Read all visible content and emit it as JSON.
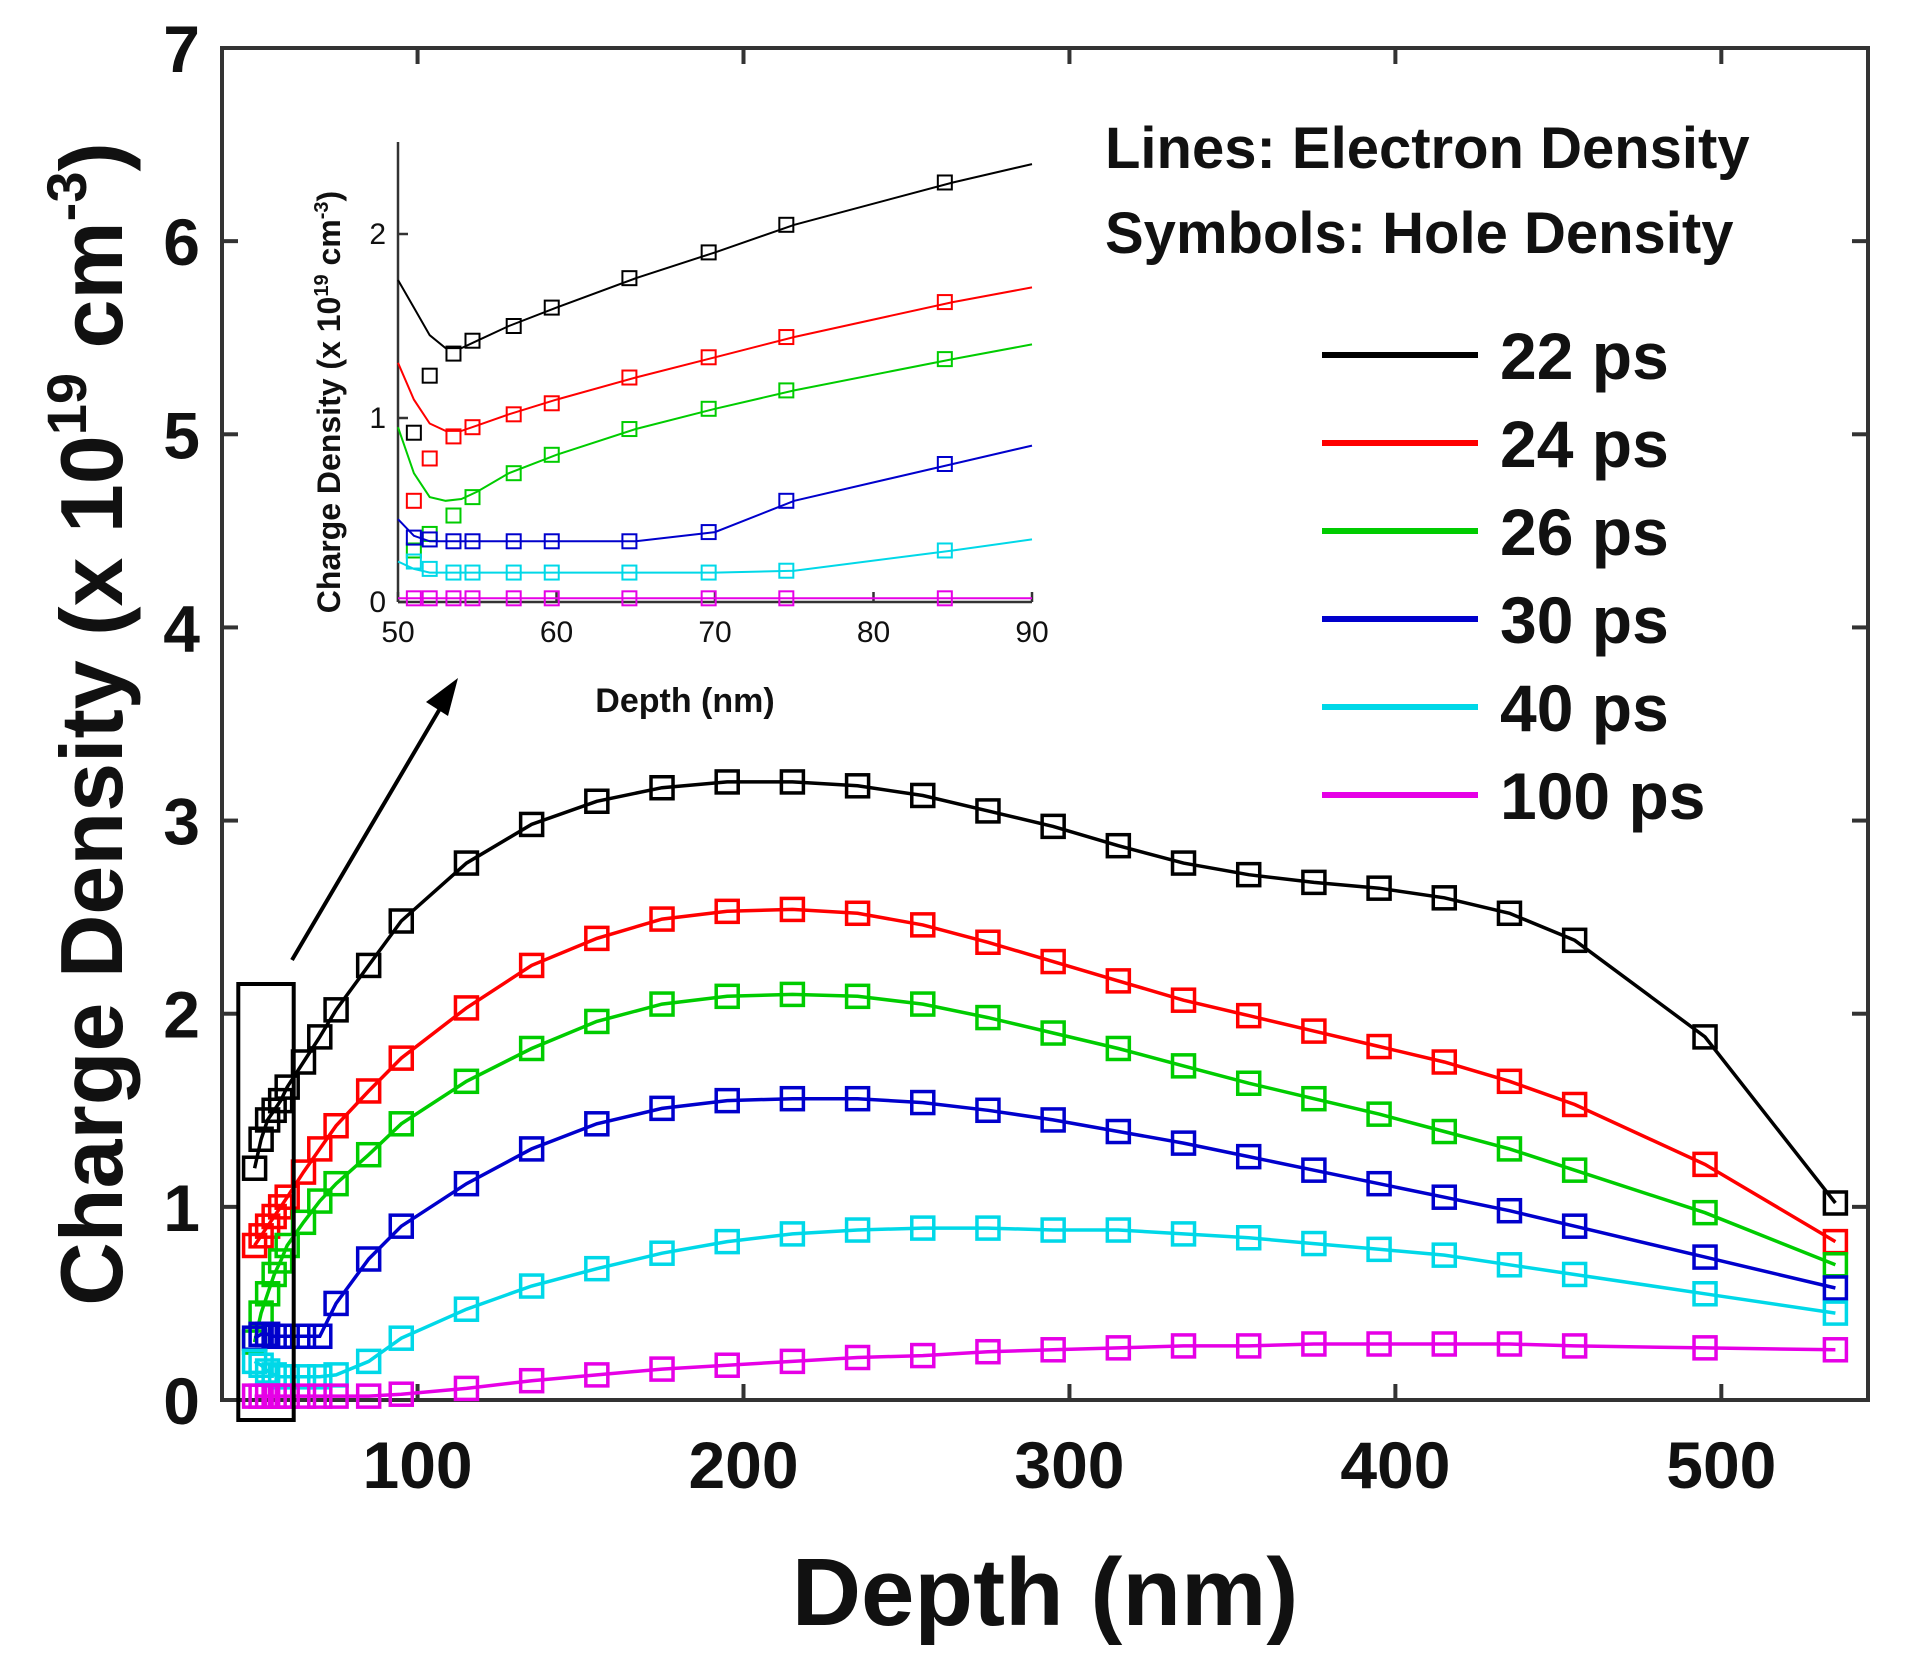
{
  "chart_data": [
    {
      "id": "main",
      "type": "line",
      "xlabel": "Depth (nm)",
      "ylabel_prefix": "Charge Density (x 10",
      "ylabel_exp1": "19",
      "ylabel_mid": " cm",
      "ylabel_exp2": "-3",
      "ylabel_suffix": ")",
      "xlim": [
        40,
        545
      ],
      "ylim": [
        0,
        7
      ],
      "xticks": [
        100,
        200,
        300,
        400,
        500
      ],
      "yticks": [
        0,
        1,
        2,
        3,
        4,
        5,
        6,
        7
      ],
      "annotation": [
        "Lines: Electron Density",
        "Symbols: Hole Density"
      ],
      "legend_position": "right",
      "x": [
        50,
        52,
        54,
        56,
        58,
        60,
        65,
        70,
        75,
        85,
        95,
        115,
        135,
        155,
        175,
        195,
        215,
        235,
        255,
        275,
        295,
        315,
        335,
        355,
        375,
        395,
        415,
        435,
        455,
        495,
        535
      ],
      "series": [
        {
          "name": "22 ps",
          "color": "#000000",
          "values": [
            1.2,
            1.35,
            1.45,
            1.5,
            1.55,
            1.62,
            1.75,
            1.88,
            2.02,
            2.25,
            2.48,
            2.78,
            2.98,
            3.1,
            3.17,
            3.2,
            3.2,
            3.18,
            3.13,
            3.05,
            2.97,
            2.87,
            2.78,
            2.72,
            2.68,
            2.65,
            2.6,
            2.52,
            2.38,
            1.88,
            1.02
          ]
        },
        {
          "name": "24 ps",
          "color": "#ff0000",
          "values": [
            0.8,
            0.85,
            0.9,
            0.95,
            1.0,
            1.05,
            1.18,
            1.3,
            1.42,
            1.6,
            1.77,
            2.03,
            2.25,
            2.39,
            2.49,
            2.53,
            2.54,
            2.52,
            2.46,
            2.37,
            2.27,
            2.17,
            2.07,
            1.99,
            1.91,
            1.83,
            1.75,
            1.65,
            1.53,
            1.22,
            0.82
          ]
        },
        {
          "name": "26 ps",
          "color": "#00cc00",
          "values": [
            0.3,
            0.45,
            0.55,
            0.65,
            0.72,
            0.8,
            0.92,
            1.03,
            1.12,
            1.27,
            1.43,
            1.65,
            1.82,
            1.96,
            2.05,
            2.09,
            2.1,
            2.09,
            2.05,
            1.98,
            1.9,
            1.82,
            1.73,
            1.64,
            1.56,
            1.48,
            1.39,
            1.3,
            1.19,
            0.97,
            0.7
          ]
        },
        {
          "name": "30 ps",
          "color": "#0000cc",
          "values": [
            0.32,
            0.34,
            0.34,
            0.33,
            0.33,
            0.33,
            0.33,
            0.33,
            0.5,
            0.73,
            0.9,
            1.12,
            1.3,
            1.43,
            1.51,
            1.55,
            1.56,
            1.56,
            1.54,
            1.5,
            1.45,
            1.39,
            1.33,
            1.26,
            1.19,
            1.12,
            1.05,
            0.98,
            0.9,
            0.74,
            0.58
          ]
        },
        {
          "name": "40 ps",
          "color": "#00d8e8",
          "values": [
            0.2,
            0.18,
            0.15,
            0.13,
            0.12,
            0.12,
            0.12,
            0.12,
            0.13,
            0.2,
            0.32,
            0.47,
            0.59,
            0.68,
            0.76,
            0.82,
            0.86,
            0.88,
            0.89,
            0.89,
            0.88,
            0.88,
            0.86,
            0.84,
            0.81,
            0.78,
            0.75,
            0.7,
            0.65,
            0.55,
            0.45
          ]
        },
        {
          "name": "100 ps",
          "color": "#e600e6",
          "values": [
            0.02,
            0.02,
            0.02,
            0.02,
            0.02,
            0.02,
            0.02,
            0.02,
            0.02,
            0.02,
            0.03,
            0.06,
            0.1,
            0.13,
            0.16,
            0.18,
            0.2,
            0.22,
            0.23,
            0.25,
            0.26,
            0.27,
            0.28,
            0.28,
            0.29,
            0.29,
            0.29,
            0.29,
            0.28,
            0.27,
            0.26
          ]
        }
      ]
    },
    {
      "id": "inset",
      "type": "line",
      "xlabel": "Depth (nm)",
      "ylabel_prefix": "Charge Density (x 10",
      "ylabel_exp1": "19",
      "ylabel_mid": " cm",
      "ylabel_exp2": "-3",
      "ylabel_suffix": ")",
      "xlim": [
        50,
        90
      ],
      "ylim": [
        0,
        2.5
      ],
      "xticks": [
        50,
        60,
        70,
        80,
        90
      ],
      "yticks": [
        0,
        1,
        2
      ],
      "x": [
        50,
        51,
        52,
        53,
        54,
        55,
        57,
        60,
        65,
        70,
        75,
        85,
        90
      ],
      "markers_x": [
        51,
        52,
        53.5,
        54.7,
        57.3,
        59.7,
        64.6,
        69.6,
        74.5,
        84.5
      ],
      "series": [
        {
          "name": "22 ps",
          "color": "#000000",
          "line": [
            1.75,
            1.6,
            1.45,
            1.38,
            1.38,
            1.42,
            1.5,
            1.6,
            1.76,
            1.9,
            2.05,
            2.28,
            2.38
          ],
          "markers": [
            0.92,
            1.23,
            1.35,
            1.42,
            1.5,
            1.6,
            1.76,
            1.9,
            2.05,
            2.28
          ]
        },
        {
          "name": "24 ps",
          "color": "#ff0000",
          "line": [
            1.3,
            1.1,
            0.97,
            0.93,
            0.93,
            0.96,
            1.02,
            1.1,
            1.22,
            1.33,
            1.44,
            1.63,
            1.71
          ],
          "markers": [
            0.55,
            0.78,
            0.9,
            0.95,
            1.02,
            1.08,
            1.22,
            1.33,
            1.44,
            1.63
          ]
        },
        {
          "name": "26 ps",
          "color": "#00cc00",
          "line": [
            0.95,
            0.7,
            0.57,
            0.55,
            0.56,
            0.6,
            0.7,
            0.8,
            0.94,
            1.05,
            1.15,
            1.32,
            1.4
          ],
          "markers": [
            0.28,
            0.37,
            0.47,
            0.57,
            0.7,
            0.8,
            0.94,
            1.05,
            1.15,
            1.32
          ]
        },
        {
          "name": "30 ps",
          "color": "#0000cc",
          "line": [
            0.45,
            0.36,
            0.33,
            0.33,
            0.33,
            0.33,
            0.33,
            0.33,
            0.33,
            0.38,
            0.55,
            0.75,
            0.85
          ],
          "markers": [
            0.35,
            0.34,
            0.33,
            0.33,
            0.33,
            0.33,
            0.33,
            0.38,
            0.55,
            0.75
          ]
        },
        {
          "name": "40 ps",
          "color": "#00d8e8",
          "line": [
            0.22,
            0.18,
            0.16,
            0.16,
            0.16,
            0.16,
            0.16,
            0.16,
            0.16,
            0.16,
            0.17,
            0.28,
            0.34
          ],
          "markers": [
            0.22,
            0.18,
            0.16,
            0.16,
            0.16,
            0.16,
            0.16,
            0.16,
            0.17,
            0.28
          ]
        },
        {
          "name": "100 ps",
          "color": "#e600e6",
          "line": [
            0.02,
            0.02,
            0.02,
            0.02,
            0.02,
            0.02,
            0.02,
            0.02,
            0.02,
            0.02,
            0.02,
            0.02,
            0.02
          ],
          "markers": [
            0.02,
            0.02,
            0.02,
            0.02,
            0.02,
            0.02,
            0.02,
            0.02,
            0.02,
            0.02
          ]
        }
      ]
    }
  ]
}
